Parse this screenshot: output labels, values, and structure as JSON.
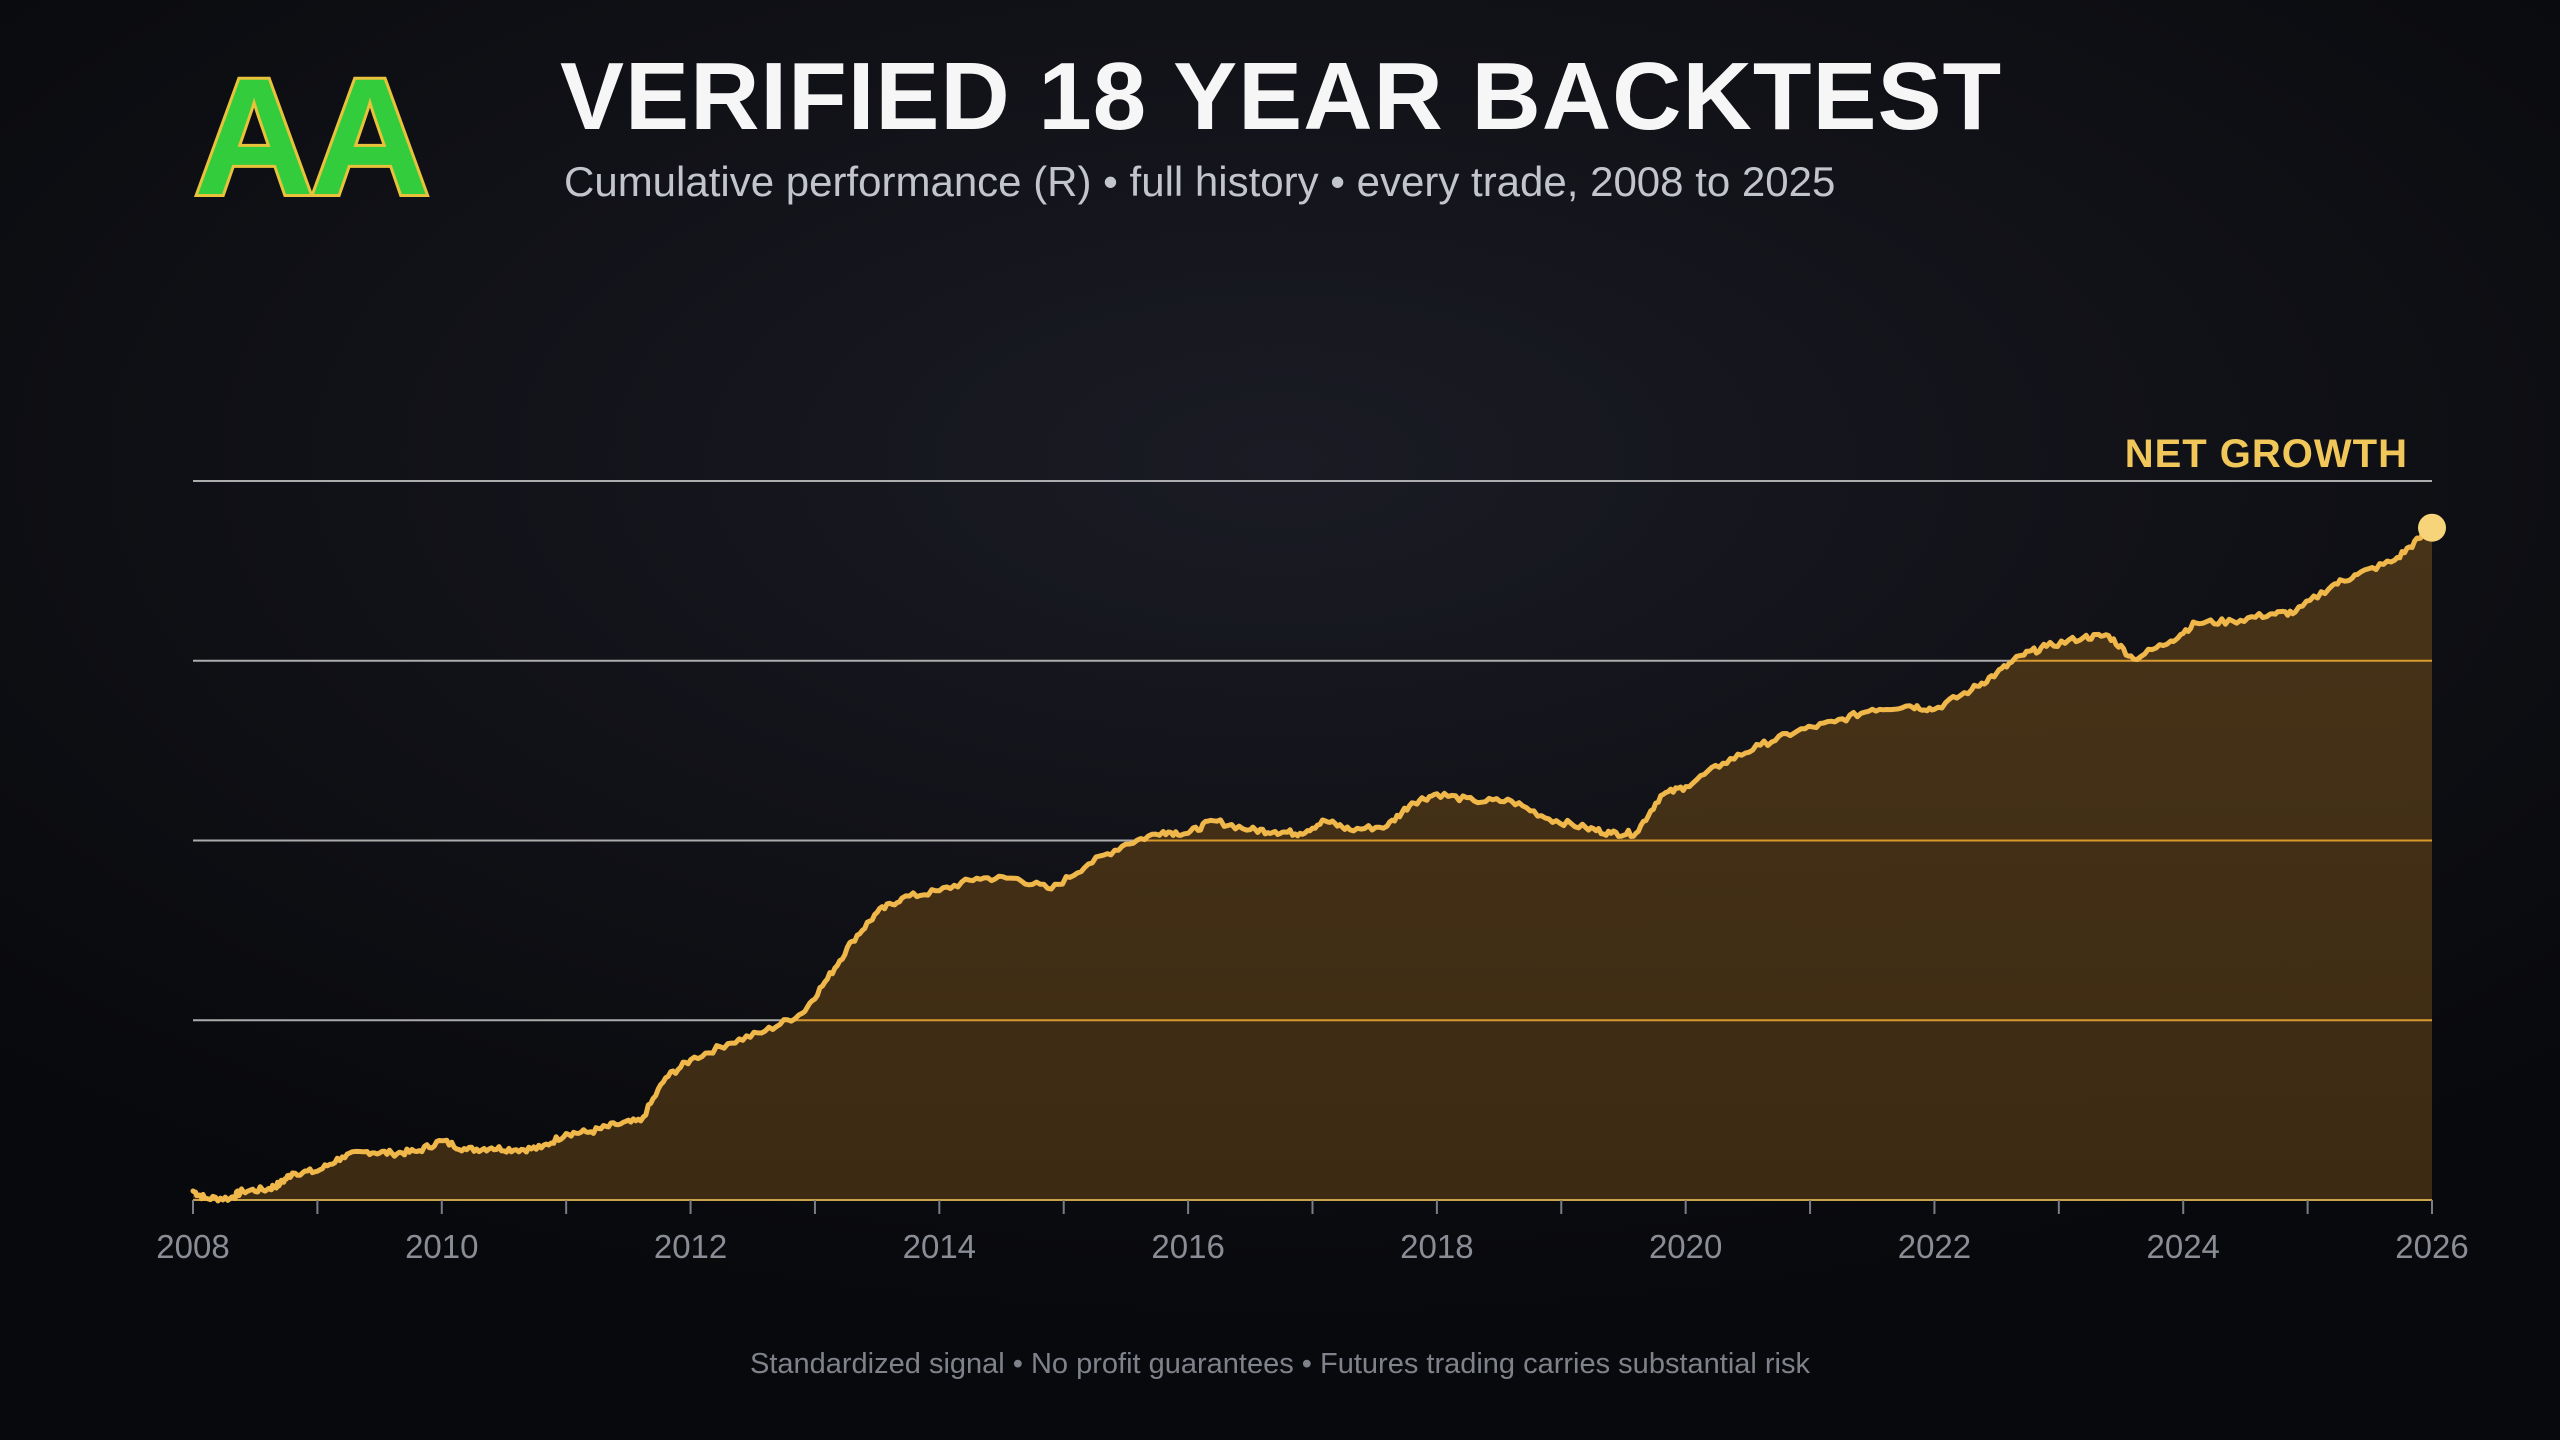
{
  "logo": {
    "text": "AA"
  },
  "header": {
    "title": "VERIFIED 18 YEAR BACKTEST",
    "subtitle": "Cumulative performance (R) • full history • every trade, 2008 to 2025"
  },
  "footer": {
    "text": "Standardized signal • No profit guarantees • Futures trading carries substantial risk"
  },
  "colors": {
    "line": "#f0b84a",
    "fill": "#3a2a14",
    "grid": "#c8c8c8",
    "grid_over_area": "#d89a2e",
    "endpoint": "#f7d37a",
    "annotation": "#f1c75a"
  },
  "chart_data": {
    "type": "area",
    "title": "",
    "xlabel": "",
    "ylabel": "",
    "xlim": [
      2008,
      2026
    ],
    "ylim": [
      0,
      4
    ],
    "y_ticks_labeled": false,
    "grid": "horizontal",
    "gridlines": [
      1,
      2,
      3,
      4
    ],
    "x_ticks_major": [
      2008,
      2010,
      2012,
      2014,
      2016,
      2018,
      2020,
      2022,
      2024,
      2026
    ],
    "x_ticks_minor": [
      2009,
      2011,
      2013,
      2015,
      2017,
      2019,
      2021,
      2023,
      2025
    ],
    "annotation": {
      "text": "NET GROWTH",
      "anchor": "end-of-series"
    },
    "series": [
      {
        "x": [
          2008.0,
          2008.1,
          2008.3,
          2008.4,
          2008.6,
          2008.7,
          2008.8,
          2009.0,
          2009.2,
          2009.4,
          2009.6,
          2009.8,
          2010.0,
          2010.2,
          2010.4,
          2010.6,
          2010.8,
          2011.0,
          2011.2,
          2011.4,
          2011.6,
          2011.8,
          2012.0,
          2012.3,
          2012.6,
          2012.9,
          2013.1,
          2013.3,
          2013.5,
          2013.7,
          2014.0,
          2014.3,
          2014.6,
          2014.9,
          2015.2,
          2015.5,
          2015.8,
          2016.0,
          2016.2,
          2016.5,
          2016.7,
          2016.9,
          2017.1,
          2017.3,
          2017.6,
          2017.8,
          2018.0,
          2018.3,
          2018.6,
          2018.9,
          2019.2,
          2019.4,
          2019.6,
          2019.8,
          2020.0,
          2020.3,
          2020.6,
          2020.9,
          2021.2,
          2021.5,
          2021.8,
          2022.0,
          2022.3,
          2022.5,
          2022.7,
          2022.9,
          2023.2,
          2023.4,
          2023.6,
          2023.9,
          2024.1,
          2024.4,
          2024.7,
          2024.9,
          2025.2,
          2025.4,
          2025.7,
          2025.9,
          2026.0
        ],
        "y": [
          0.05,
          0.01,
          0.01,
          0.05,
          0.06,
          0.09,
          0.15,
          0.16,
          0.24,
          0.27,
          0.26,
          0.27,
          0.33,
          0.28,
          0.29,
          0.28,
          0.29,
          0.37,
          0.38,
          0.42,
          0.44,
          0.68,
          0.78,
          0.87,
          0.94,
          1.04,
          1.23,
          1.44,
          1.6,
          1.68,
          1.72,
          1.79,
          1.79,
          1.73,
          1.87,
          1.98,
          2.05,
          2.04,
          2.11,
          2.06,
          2.05,
          2.04,
          2.11,
          2.06,
          2.08,
          2.21,
          2.26,
          2.22,
          2.22,
          2.12,
          2.07,
          2.04,
          2.04,
          2.25,
          2.3,
          2.43,
          2.53,
          2.61,
          2.66,
          2.73,
          2.75,
          2.73,
          2.84,
          2.93,
          3.03,
          3.08,
          3.13,
          3.14,
          3.01,
          3.11,
          3.21,
          3.22,
          3.26,
          3.27,
          3.42,
          3.48,
          3.56,
          3.68,
          3.74
        ]
      }
    ]
  }
}
